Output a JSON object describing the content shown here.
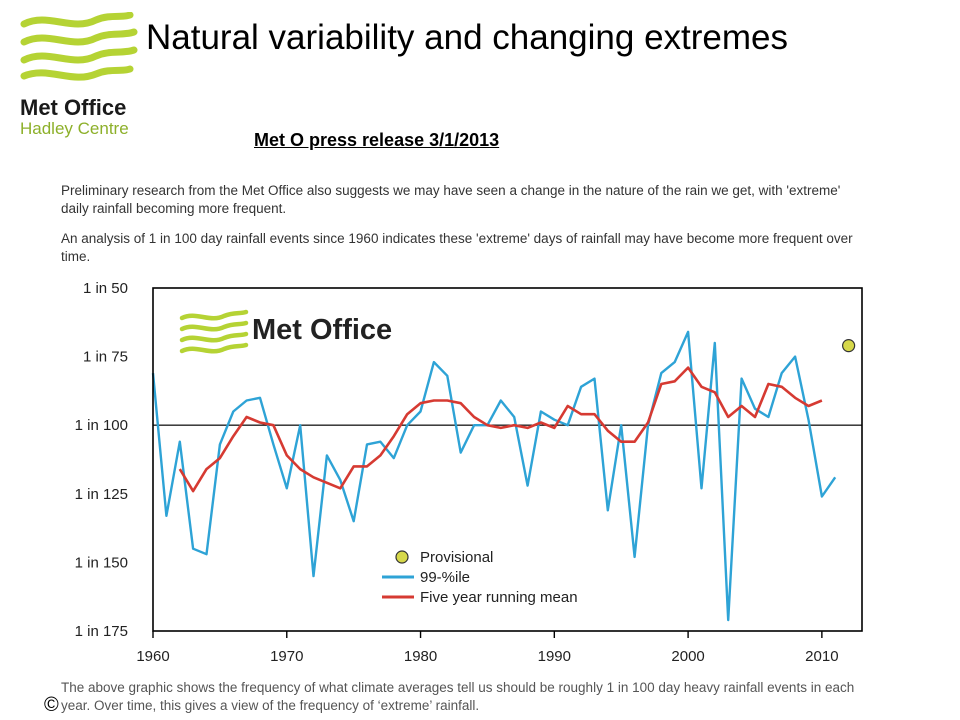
{
  "slide": {
    "title": "Natural variability and changing extremes",
    "subtitle": "Met O press release 3/1/2013",
    "copyright_symbol": "©"
  },
  "logo": {
    "line1": "Met Office",
    "line2": "Hadley Centre",
    "wave_color": "#b5d334",
    "text_color": "#1a1a1a",
    "sub_color": "#8db02a"
  },
  "article": {
    "paragraph1": "Preliminary research from the Met Office also suggests we may have seen a change in the nature of the rain we get, with 'extreme' daily rainfall becoming more frequent.",
    "paragraph2": "An analysis of 1 in 100 day rainfall events since 1960 indicates these 'extreme' days of rainfall may have become more frequent over time.",
    "caption": "The above graphic shows the frequency of what climate averages tell us should be roughly 1 in 100 day heavy rainfall events in each year. Over time, this gives a view of the frequency of ‘extreme’ rainfall."
  },
  "chart_data": {
    "type": "line",
    "title": "",
    "xlabel": "",
    "ylabel": "",
    "inset_logo": "Met Office",
    "x_ticks": [
      1960,
      1970,
      1980,
      1990,
      2000,
      2010
    ],
    "xlim": [
      1960,
      2013
    ],
    "y_ticks": [
      {
        "value": 50,
        "label": "1 in 50"
      },
      {
        "value": 75,
        "label": "1 in 75"
      },
      {
        "value": 100,
        "label": "1 in 100"
      },
      {
        "value": 125,
        "label": "1 in 125"
      },
      {
        "value": 150,
        "label": "1 in 150"
      },
      {
        "value": 175,
        "label": "1 in 175"
      }
    ],
    "ylim": [
      50,
      175
    ],
    "y_inverted": true,
    "reference_line": 100,
    "legend_position": "bottom-center",
    "series": [
      {
        "name": "99-%ile",
        "color": "#2ea3d6",
        "x": [
          1960,
          1961,
          1962,
          1963,
          1964,
          1965,
          1966,
          1967,
          1968,
          1969,
          1970,
          1971,
          1972,
          1973,
          1974,
          1975,
          1976,
          1977,
          1978,
          1979,
          1980,
          1981,
          1982,
          1983,
          1984,
          1985,
          1986,
          1987,
          1988,
          1989,
          1990,
          1991,
          1992,
          1993,
          1994,
          1995,
          1996,
          1997,
          1998,
          1999,
          2000,
          2001,
          2002,
          2003,
          2004,
          2005,
          2006,
          2007,
          2008,
          2009,
          2010,
          2011
        ],
        "y": [
          81,
          133,
          106,
          145,
          147,
          107,
          95,
          91,
          90,
          107,
          123,
          100,
          155,
          111,
          120,
          135,
          107,
          106,
          112,
          100,
          95,
          77,
          82,
          110,
          100,
          100,
          91,
          97,
          122,
          95,
          98,
          100,
          86,
          83,
          131,
          100,
          148,
          100,
          81,
          77,
          66,
          123,
          70,
          171,
          83,
          94,
          97,
          81,
          75,
          98,
          126,
          119
        ]
      },
      {
        "name": "Five year running mean",
        "color": "#d63a32",
        "x": [
          1962,
          1963,
          1964,
          1965,
          1966,
          1967,
          1968,
          1969,
          1970,
          1971,
          1972,
          1973,
          1974,
          1975,
          1976,
          1977,
          1978,
          1979,
          1980,
          1981,
          1982,
          1983,
          1984,
          1985,
          1986,
          1987,
          1988,
          1989,
          1990,
          1991,
          1992,
          1993,
          1994,
          1995,
          1996,
          1997,
          1998,
          1999,
          2000,
          2001,
          2002,
          2003,
          2004,
          2005,
          2006,
          2007,
          2008,
          2009,
          2010
        ],
        "y": [
          116,
          124,
          116,
          112,
          104,
          97,
          99,
          100,
          111,
          116,
          119,
          121,
          123,
          115,
          115,
          111,
          104,
          96,
          92,
          91,
          91,
          92,
          97,
          100,
          101,
          100,
          101,
          99,
          101,
          93,
          96,
          96,
          102,
          106,
          106,
          99,
          85,
          84,
          79,
          86,
          88,
          97,
          93,
          97,
          85,
          86,
          90,
          93,
          91
        ]
      },
      {
        "name": "Provisional",
        "color": "#d6d84a",
        "x": [
          2012
        ],
        "y": [
          71
        ]
      }
    ]
  }
}
